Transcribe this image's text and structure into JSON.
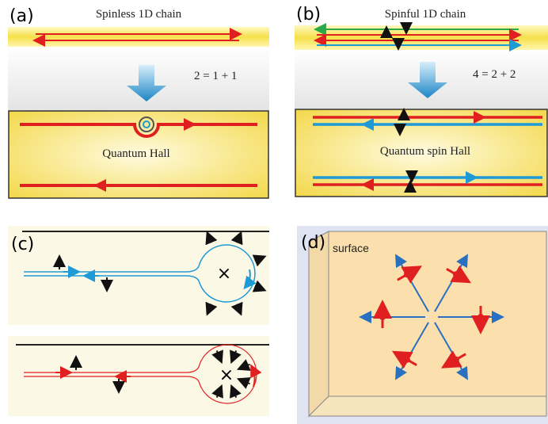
{
  "panels": [
    {
      "label": "(a)",
      "title": "Spinless 1D chain",
      "equation": "2 = 1 + 1",
      "caption": "Quantum Hall"
    },
    {
      "label": "(b)",
      "title": "Spinful 1D chain",
      "equation": "4 = 2 + 2",
      "caption": "Quantum spin Hall"
    },
    {
      "label": "(c)"
    },
    {
      "label": "(d)",
      "caption": "surface"
    }
  ]
}
